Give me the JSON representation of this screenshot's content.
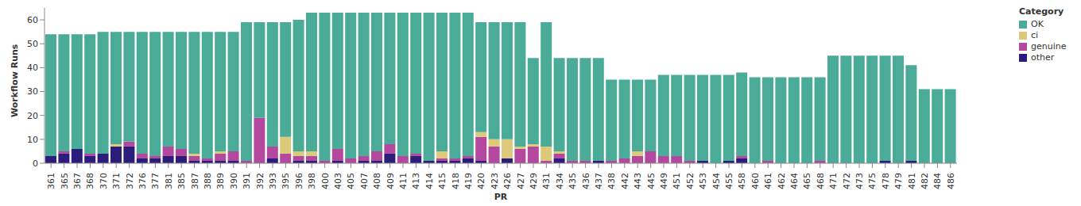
{
  "chart_data": {
    "type": "bar",
    "stacked": true,
    "grid": false,
    "legend": "top-right",
    "legend_title": "Category",
    "x_label": "PR",
    "y_label": "Workflow Runs",
    "ylim": [
      0,
      65
    ],
    "yticks": [
      0,
      10,
      20,
      30,
      40,
      50,
      60
    ],
    "categories": [
      "361",
      "365",
      "367",
      "368",
      "370",
      "371",
      "372",
      "376",
      "377",
      "381",
      "385",
      "387",
      "388",
      "389",
      "390",
      "391",
      "392",
      "393",
      "395",
      "396",
      "398",
      "400",
      "403",
      "405",
      "407",
      "408",
      "409",
      "411",
      "413",
      "414",
      "415",
      "418",
      "419",
      "420",
      "423",
      "426",
      "427",
      "429",
      "431",
      "434",
      "435",
      "436",
      "437",
      "438",
      "442",
      "443",
      "445",
      "449",
      "451",
      "452",
      "453",
      "454",
      "455",
      "458",
      "460",
      "461",
      "462",
      "464",
      "465",
      "468",
      "471",
      "472",
      "473",
      "475",
      "478",
      "479",
      "481",
      "482",
      "484",
      "486"
    ],
    "series": [
      {
        "name": "OK",
        "color": "#4aab98",
        "values": [
          51,
          49,
          48,
          50,
          51,
          47,
          46,
          51,
          52,
          48,
          49,
          51,
          53,
          50,
          50,
          58,
          40,
          52,
          48,
          55,
          58,
          62,
          57,
          61,
          60,
          58,
          55,
          60,
          59,
          62,
          58,
          61,
          60,
          46,
          49,
          49,
          52,
          36,
          52,
          39,
          43,
          43,
          43,
          34,
          33,
          30,
          30,
          34,
          34,
          36,
          36,
          37,
          36,
          35,
          36,
          35,
          36,
          36,
          36,
          35,
          45,
          45,
          45,
          45,
          44,
          45,
          40,
          31,
          31,
          31
        ]
      },
      {
        "name": "ci",
        "color": "#dcc97a",
        "values": [
          0,
          0,
          0,
          0,
          0,
          1,
          0,
          0,
          0,
          0,
          0,
          1,
          0,
          1,
          0,
          0,
          0,
          0,
          7,
          2,
          2,
          0,
          0,
          0,
          0,
          0,
          0,
          0,
          0,
          0,
          3,
          0,
          0,
          2,
          3,
          8,
          1,
          1,
          6,
          1,
          0,
          0,
          0,
          0,
          0,
          2,
          0,
          0,
          0,
          0,
          0,
          0,
          0,
          0,
          0,
          0,
          0,
          0,
          0,
          0,
          0,
          0,
          0,
          0,
          0,
          0,
          0,
          0,
          0,
          0
        ]
      },
      {
        "name": "genuine",
        "color": "#b4479e",
        "values": [
          0,
          1,
          0,
          1,
          0,
          0,
          2,
          2,
          1,
          4,
          3,
          2,
          1,
          3,
          4,
          1,
          19,
          5,
          4,
          2,
          2,
          1,
          5,
          2,
          2,
          4,
          4,
          3,
          1,
          0,
          1,
          1,
          1,
          10,
          7,
          0,
          6,
          7,
          1,
          2,
          1,
          1,
          0,
          1,
          2,
          3,
          5,
          3,
          3,
          1,
          0,
          0,
          0,
          1,
          0,
          1,
          0,
          0,
          0,
          1,
          0,
          0,
          0,
          0,
          0,
          0,
          0,
          0,
          0,
          0
        ]
      },
      {
        "name": "other",
        "color": "#2c1c7c",
        "values": [
          3,
          4,
          6,
          3,
          4,
          7,
          7,
          2,
          2,
          3,
          3,
          1,
          1,
          1,
          1,
          0,
          0,
          2,
          0,
          1,
          1,
          0,
          1,
          0,
          1,
          1,
          4,
          0,
          3,
          1,
          1,
          1,
          2,
          1,
          0,
          2,
          0,
          0,
          0,
          2,
          0,
          0,
          1,
          0,
          0,
          0,
          0,
          0,
          0,
          0,
          1,
          0,
          1,
          2,
          0,
          0,
          0,
          0,
          0,
          0,
          0,
          0,
          0,
          0,
          1,
          0,
          1,
          0,
          0,
          0
        ]
      }
    ]
  }
}
